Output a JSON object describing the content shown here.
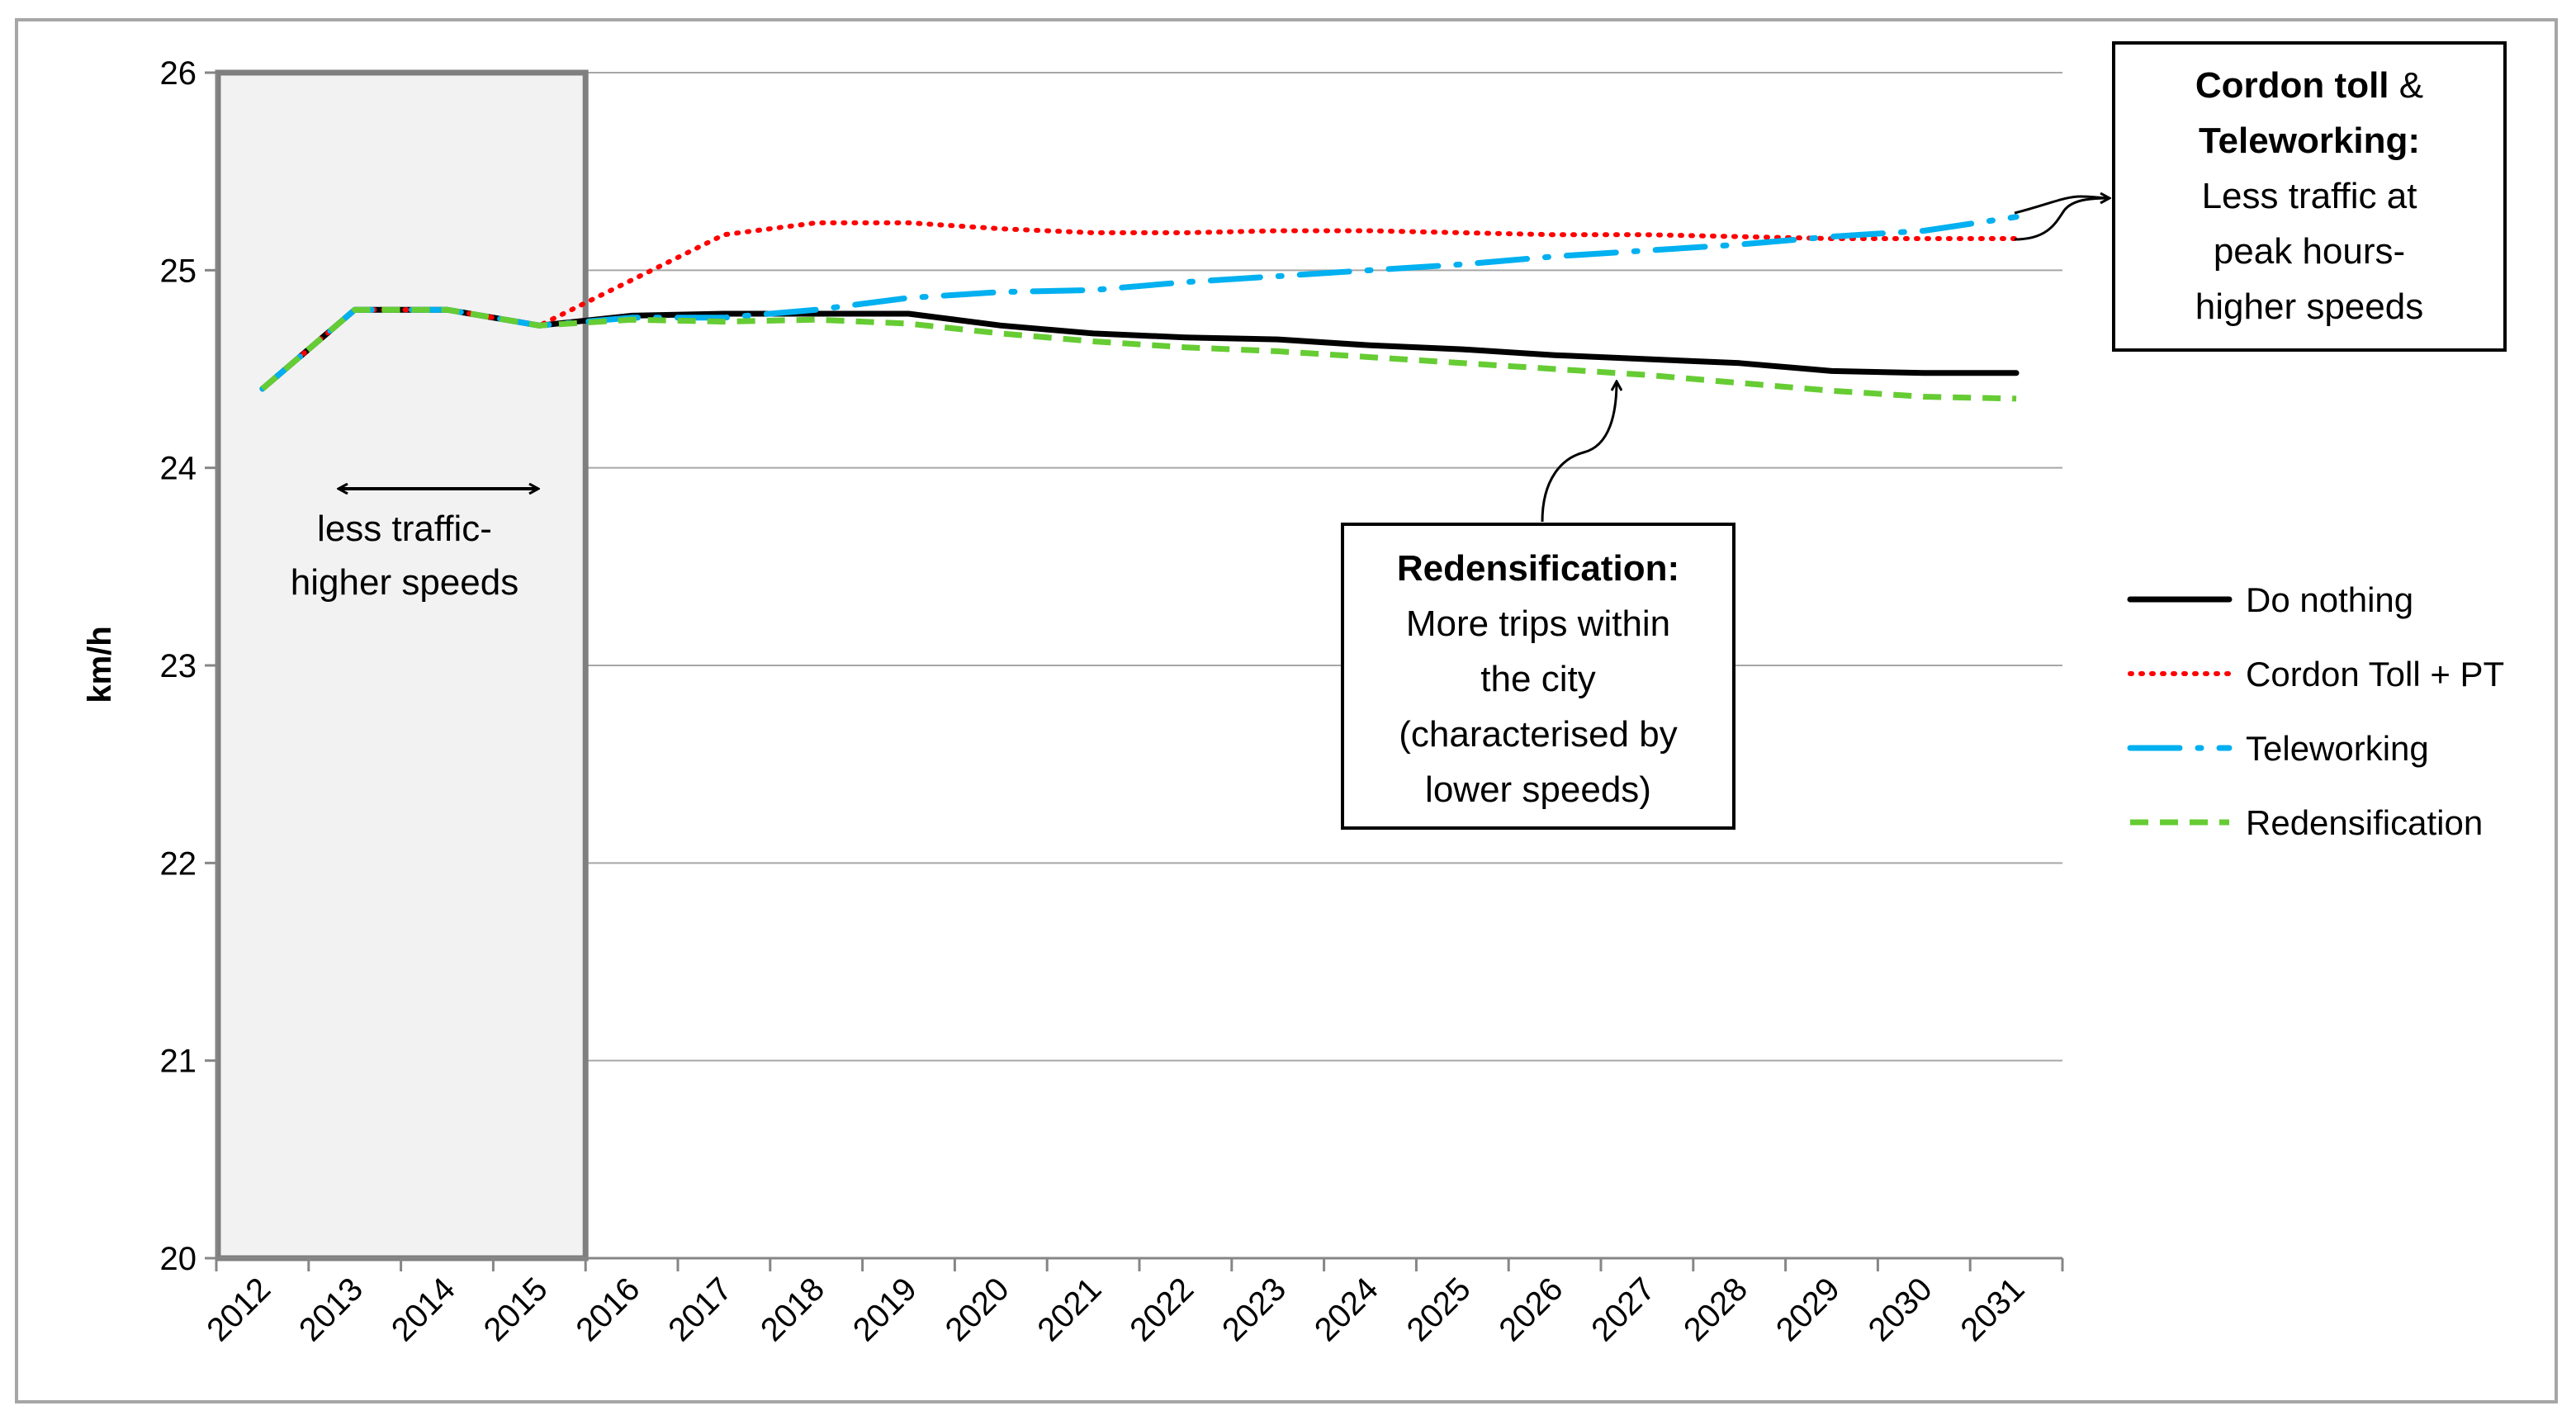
{
  "chart_data": {
    "type": "line",
    "title": "",
    "xlabel": "",
    "ylabel": "km/h",
    "ylim": [
      20,
      26
    ],
    "yticks": [
      "20",
      "21",
      "22",
      "23",
      "24",
      "25",
      "26"
    ],
    "categories": [
      "2012",
      "2013",
      "2014",
      "2015",
      "2016",
      "2017",
      "2018",
      "2019",
      "2020",
      "2021",
      "2022",
      "2023",
      "2024",
      "2025",
      "2026",
      "2027",
      "2028",
      "2029",
      "2030",
      "2031"
    ],
    "grid": true,
    "legend_position": "right",
    "series": [
      {
        "name": "Do nothing",
        "color": "#000000",
        "style": "solid",
        "values": [
          24.4,
          24.8,
          24.8,
          24.72,
          24.77,
          24.78,
          24.78,
          24.78,
          24.72,
          24.68,
          24.66,
          24.65,
          24.62,
          24.6,
          24.57,
          24.55,
          24.53,
          24.49,
          24.48,
          24.48
        ]
      },
      {
        "name": "Cordon Toll + PT",
        "color": "#ff0000",
        "style": "dotted",
        "values": [
          24.4,
          24.8,
          24.8,
          24.72,
          24.95,
          25.18,
          25.24,
          25.24,
          25.21,
          25.19,
          25.19,
          25.2,
          25.2,
          25.19,
          25.18,
          25.18,
          25.17,
          25.16,
          25.16,
          25.16
        ]
      },
      {
        "name": "Teleworking",
        "color": "#00b0f0",
        "style": "dashdot",
        "values": [
          24.4,
          24.8,
          24.8,
          24.72,
          24.76,
          24.76,
          24.8,
          24.86,
          24.89,
          24.9,
          24.94,
          24.97,
          25.0,
          25.03,
          25.07,
          25.1,
          25.13,
          25.17,
          25.2,
          25.27
        ]
      },
      {
        "name": "Redensification",
        "color": "#66cc33",
        "style": "dashed",
        "values": [
          24.4,
          24.8,
          24.8,
          24.72,
          24.75,
          24.74,
          24.75,
          24.73,
          24.68,
          24.64,
          24.61,
          24.59,
          24.56,
          24.53,
          24.5,
          24.47,
          24.43,
          24.39,
          24.36,
          24.35
        ]
      }
    ],
    "shaded_region": {
      "from": "2012",
      "to": "2015"
    },
    "annotations": {
      "shaded": {
        "lines": [
          "less traffic-",
          "higher speeds"
        ]
      },
      "redensification": {
        "title": "Redensification:",
        "lines": [
          "More trips within",
          "the city",
          "(characterised by",
          "lower speeds)"
        ]
      },
      "cordon": {
        "title_bold_1": "Cordon toll",
        "title_normal_1": " &",
        "title_bold_2": "Teleworking:",
        "lines": [
          "Less traffic at",
          "peak hours-",
          "higher speeds"
        ]
      }
    }
  }
}
